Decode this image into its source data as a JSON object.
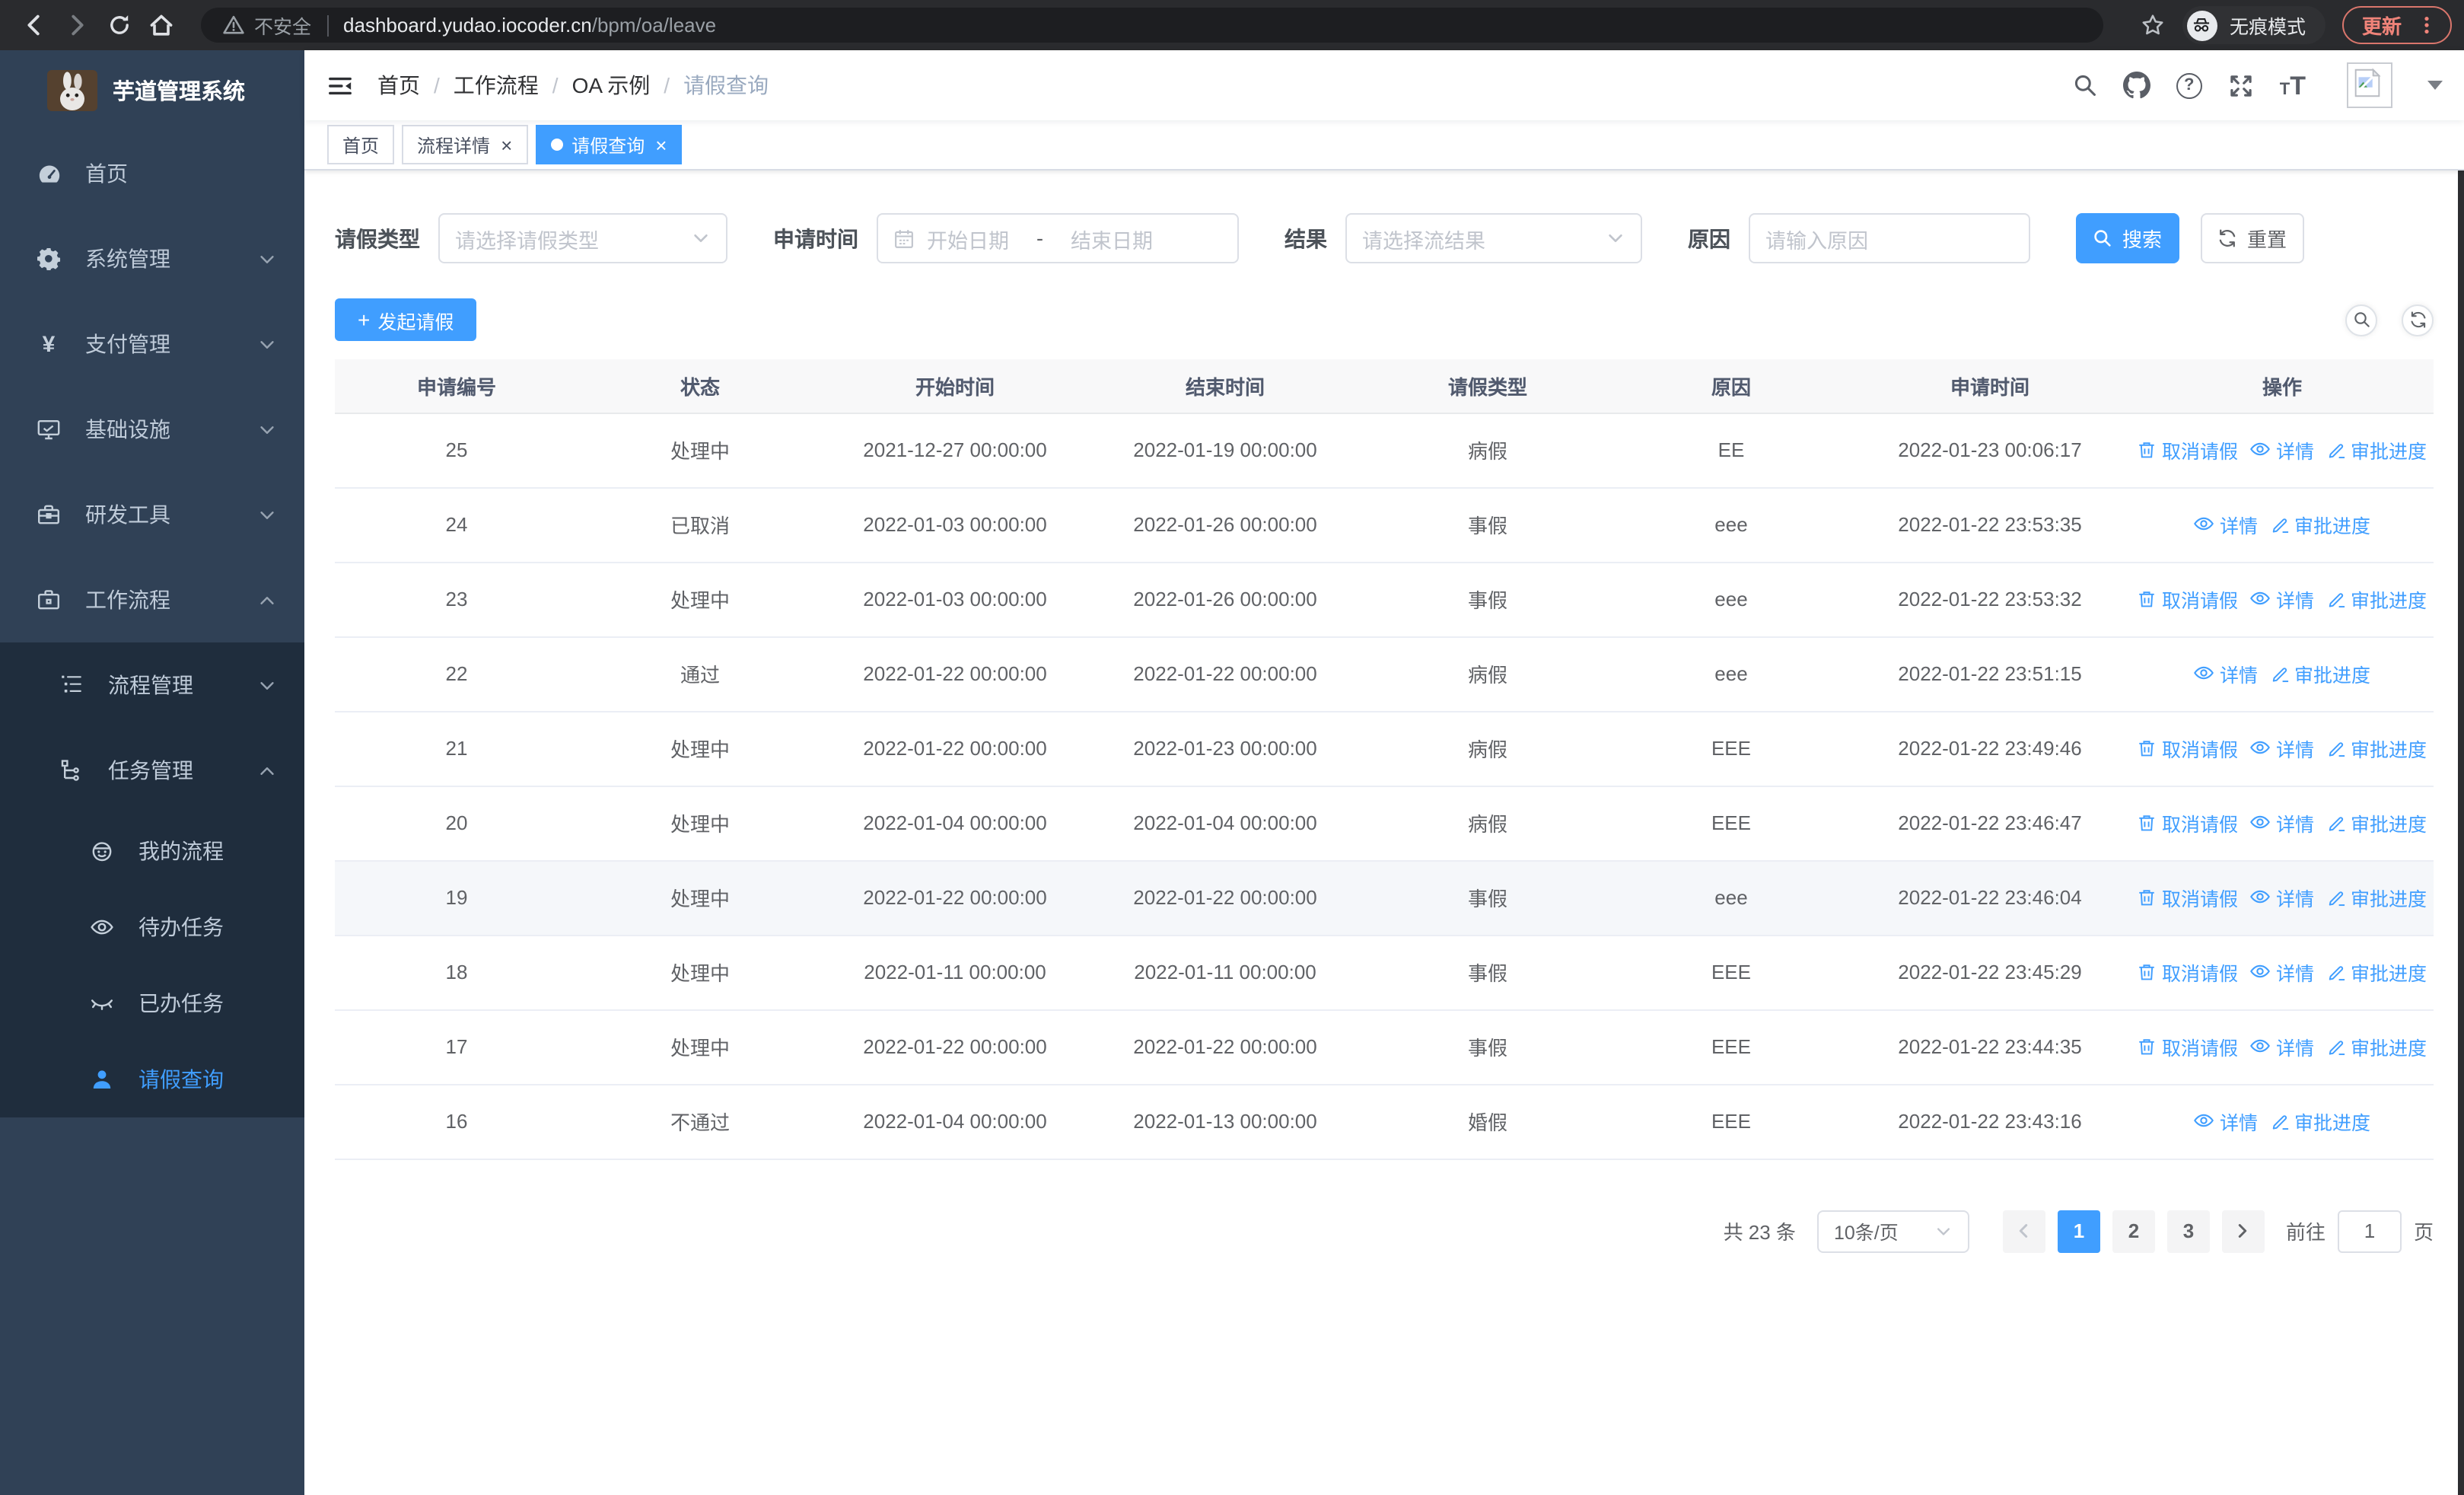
{
  "browser": {
    "security_label": "不安全",
    "url_host": "dashboard.yudao.iocoder.cn",
    "url_path": "/bpm/oa/leave",
    "incognito_label": "无痕模式",
    "update_label": "更新"
  },
  "sidebar": {
    "title": "芋道管理系统",
    "items": [
      {
        "label": "首页",
        "icon": "dashboard",
        "chevron": null
      },
      {
        "label": "系统管理",
        "icon": "gear",
        "chevron": "down"
      },
      {
        "label": "支付管理",
        "icon": "yen",
        "chevron": "down"
      },
      {
        "label": "基础设施",
        "icon": "monitor",
        "chevron": "down"
      },
      {
        "label": "研发工具",
        "icon": "toolbox",
        "chevron": "down"
      },
      {
        "label": "工作流程",
        "icon": "briefcase",
        "chevron": "up"
      }
    ],
    "submenu": [
      {
        "label": "流程管理",
        "icon": "flow-list",
        "level": 2,
        "chevron": "down",
        "active": false
      },
      {
        "label": "任务管理",
        "icon": "tree",
        "level": 2,
        "chevron": "up",
        "active": false
      },
      {
        "label": "我的流程",
        "icon": "robot",
        "level": 3,
        "chevron": null,
        "active": false
      },
      {
        "label": "待办任务",
        "icon": "eye",
        "level": 3,
        "chevron": null,
        "active": false
      },
      {
        "label": "已办任务",
        "icon": "eye-closed",
        "level": 3,
        "chevron": null,
        "active": false
      },
      {
        "label": "请假查询",
        "icon": "user",
        "level": 3,
        "chevron": null,
        "active": true
      }
    ]
  },
  "header": {
    "breadcrumb": [
      "首页",
      "工作流程",
      "OA 示例",
      "请假查询"
    ]
  },
  "tabs": [
    {
      "label": "首页",
      "active": false,
      "closable": false
    },
    {
      "label": "流程详情",
      "active": false,
      "closable": true
    },
    {
      "label": "请假查询",
      "active": true,
      "closable": true
    }
  ],
  "filters": {
    "leave_type_label": "请假类型",
    "leave_type_placeholder": "请选择请假类型",
    "apply_time_label": "申请时间",
    "start_date_placeholder": "开始日期",
    "range_separator": "-",
    "end_date_placeholder": "结束日期",
    "result_label": "结果",
    "result_placeholder": "请选择流结果",
    "reason_label": "原因",
    "reason_placeholder": "请输入原因",
    "search_button": "搜索",
    "reset_button": "重置"
  },
  "toolbar": {
    "create_button": "发起请假"
  },
  "table": {
    "columns": [
      "申请编号",
      "状态",
      "开始时间",
      "结束时间",
      "请假类型",
      "原因",
      "申请时间",
      "操作"
    ],
    "action_labels": {
      "cancel": "取消请假",
      "detail": "详情",
      "progress": "审批进度"
    },
    "rows": [
      {
        "id": "25",
        "status": "处理中",
        "start": "2021-12-27 00:00:00",
        "end": "2022-01-19 00:00:00",
        "type": "病假",
        "reason": "EE",
        "apply_time": "2022-01-23 00:06:17",
        "actions": [
          "cancel",
          "detail",
          "progress"
        ],
        "hovered": false
      },
      {
        "id": "24",
        "status": "已取消",
        "start": "2022-01-03 00:00:00",
        "end": "2022-01-26 00:00:00",
        "type": "事假",
        "reason": "eee",
        "apply_time": "2022-01-22 23:53:35",
        "actions": [
          "detail",
          "progress"
        ],
        "hovered": false
      },
      {
        "id": "23",
        "status": "处理中",
        "start": "2022-01-03 00:00:00",
        "end": "2022-01-26 00:00:00",
        "type": "事假",
        "reason": "eee",
        "apply_time": "2022-01-22 23:53:32",
        "actions": [
          "cancel",
          "detail",
          "progress"
        ],
        "hovered": false
      },
      {
        "id": "22",
        "status": "通过",
        "start": "2022-01-22 00:00:00",
        "end": "2022-01-22 00:00:00",
        "type": "病假",
        "reason": "eee",
        "apply_time": "2022-01-22 23:51:15",
        "actions": [
          "detail",
          "progress"
        ],
        "hovered": false
      },
      {
        "id": "21",
        "status": "处理中",
        "start": "2022-01-22 00:00:00",
        "end": "2022-01-23 00:00:00",
        "type": "病假",
        "reason": "EEE",
        "apply_time": "2022-01-22 23:49:46",
        "actions": [
          "cancel",
          "detail",
          "progress"
        ],
        "hovered": false
      },
      {
        "id": "20",
        "status": "处理中",
        "start": "2022-01-04 00:00:00",
        "end": "2022-01-04 00:00:00",
        "type": "病假",
        "reason": "EEE",
        "apply_time": "2022-01-22 23:46:47",
        "actions": [
          "cancel",
          "detail",
          "progress"
        ],
        "hovered": false
      },
      {
        "id": "19",
        "status": "处理中",
        "start": "2022-01-22 00:00:00",
        "end": "2022-01-22 00:00:00",
        "type": "事假",
        "reason": "eee",
        "apply_time": "2022-01-22 23:46:04",
        "actions": [
          "cancel",
          "detail",
          "progress"
        ],
        "hovered": true
      },
      {
        "id": "18",
        "status": "处理中",
        "start": "2022-01-11 00:00:00",
        "end": "2022-01-11 00:00:00",
        "type": "事假",
        "reason": "EEE",
        "apply_time": "2022-01-22 23:45:29",
        "actions": [
          "cancel",
          "detail",
          "progress"
        ],
        "hovered": false
      },
      {
        "id": "17",
        "status": "处理中",
        "start": "2022-01-22 00:00:00",
        "end": "2022-01-22 00:00:00",
        "type": "事假",
        "reason": "EEE",
        "apply_time": "2022-01-22 23:44:35",
        "actions": [
          "cancel",
          "detail",
          "progress"
        ],
        "hovered": false
      },
      {
        "id": "16",
        "status": "不通过",
        "start": "2022-01-04 00:00:00",
        "end": "2022-01-13 00:00:00",
        "type": "婚假",
        "reason": "EEE",
        "apply_time": "2022-01-22 23:43:16",
        "actions": [
          "detail",
          "progress"
        ],
        "hovered": false
      }
    ]
  },
  "pagination": {
    "total_text": "共 23 条",
    "page_size": "10条/页",
    "pages": [
      "1",
      "2",
      "3"
    ],
    "active_page": "1",
    "goto_label": "前往",
    "goto_value": "1",
    "goto_suffix": "页"
  },
  "colors": {
    "accent": "#409eff",
    "sidebar_bg": "#304156",
    "submenu_bg": "#1f2d3d",
    "sidebar_text": "#bfcbd9",
    "update_red": "#ef8379"
  }
}
